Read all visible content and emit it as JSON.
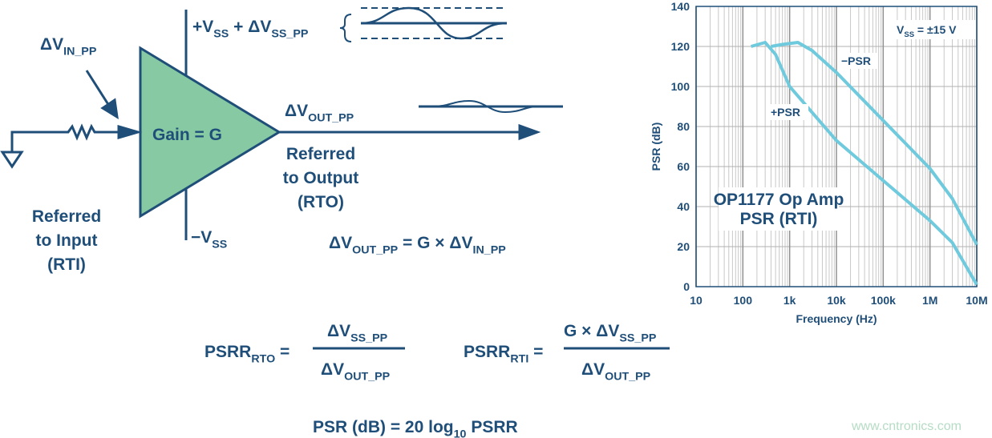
{
  "diagram": {
    "supply_top": [
      "+V",
      "SS",
      " + ΔV",
      "SS_PP"
    ],
    "input_delta": [
      "ΔV",
      "IN_PP"
    ],
    "gain": "Gain = G",
    "output_delta": [
      "ΔV",
      "OUT_PP"
    ],
    "rto_label": [
      "Referred",
      "to Output",
      "(RTO)"
    ],
    "rti_label": [
      "Referred",
      "to Input",
      "(RTI)"
    ],
    "supply_bottom": [
      "−V",
      "SS"
    ],
    "gain_formula": [
      "ΔV",
      "OUT_PP",
      " = G × ΔV",
      "IN_PP"
    ],
    "psrr_rto": {
      "lhs": [
        "PSRR",
        "RTO",
        " ="
      ],
      "numerator": [
        "ΔV",
        "SS_PP"
      ],
      "denominator": [
        "ΔV",
        "OUT_PP"
      ]
    },
    "psrr_rti": {
      "lhs": [
        "PSRR",
        "RTI",
        " ="
      ],
      "numerator": [
        "G × ΔV",
        "SS_PP"
      ],
      "denominator": [
        "ΔV",
        "OUT_PP"
      ]
    },
    "psr_formula": [
      "PSR (dB) = 20 log",
      "10",
      " PSRR"
    ],
    "watermark": "www.cntronics.com"
  },
  "chart_data": {
    "type": "line",
    "xlabel": "Frequency (Hz)",
    "ylabel": "PSR (dB)",
    "xscale": "log",
    "xlim": [
      10,
      10000000
    ],
    "xticks": [
      10,
      100,
      {
        "value": 1000,
        "label": "1k"
      },
      {
        "value": 10000,
        "label": "10k"
      },
      {
        "value": 100000,
        "label": "100k"
      },
      {
        "value": 1000000,
        "label": "1M"
      },
      {
        "value": 10000000,
        "label": "10M"
      }
    ],
    "ylim": [
      0,
      140
    ],
    "yticks": [
      0,
      20,
      40,
      60,
      80,
      100,
      120,
      140
    ],
    "grid": true,
    "annotations": {
      "supply": [
        "V",
        "SS",
        " = ±15 V"
      ],
      "part": [
        "OP1177 Op Amp",
        "PSR (RTI)"
      ]
    },
    "series": [
      {
        "name": "+PSR",
        "color": "#6ecadc",
        "x": [
          150,
          300,
          500,
          1000,
          10000,
          100000,
          1000000,
          3000000,
          10000000
        ],
        "values": [
          120,
          122,
          116,
          100,
          73,
          53,
          33,
          22,
          1
        ]
      },
      {
        "name": "−PSR",
        "color": "#6ecadc",
        "x": [
          400,
          700,
          1500,
          3000,
          10000,
          100000,
          1000000,
          3000000,
          10000000
        ],
        "values": [
          120,
          121,
          122,
          118,
          107,
          83,
          59,
          44,
          21
        ]
      }
    ]
  }
}
